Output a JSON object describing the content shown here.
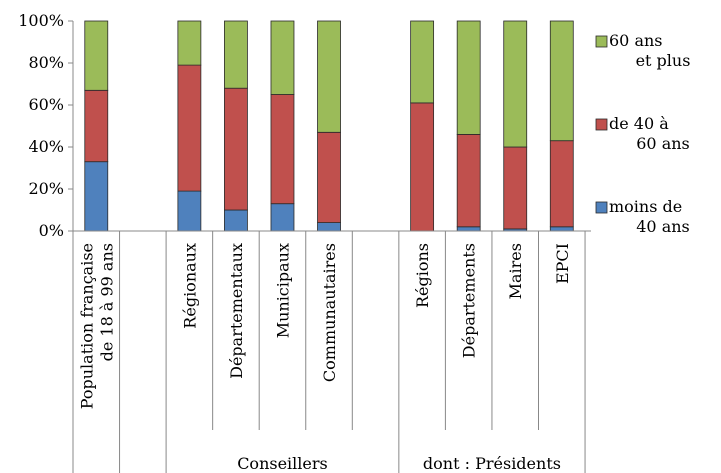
{
  "chart_data": {
    "type": "bar",
    "stacked": true,
    "percent": true,
    "categories": [
      "Population française de 18 à 99 ans",
      "",
      "Régionaux",
      "Départementaux",
      "Municipaux",
      "Communautaires",
      "",
      "Régions",
      "Départements",
      "Maires",
      "EPCI"
    ],
    "category_lines": [
      [
        "Population française",
        "de 18 à 99 ans"
      ],
      [],
      [
        "Régionaux"
      ],
      [
        "Départementaux"
      ],
      [
        "Municipaux"
      ],
      [
        "Communautaires"
      ],
      [],
      [
        "Régions"
      ],
      [
        "Départements"
      ],
      [
        "Maires"
      ],
      [
        "EPCI"
      ]
    ],
    "groups": [
      {
        "label": "Conseillers",
        "from": 2,
        "to": 6
      },
      {
        "label": "dont : Présidents",
        "from": 7,
        "to": 10
      }
    ],
    "series": [
      {
        "name": "moins de 40 ans",
        "legend_lines": [
          "moins de",
          "40 ans"
        ],
        "color": "#4f81bd",
        "values": [
          33,
          null,
          19,
          10,
          13,
          4,
          null,
          0,
          2,
          1,
          2
        ]
      },
      {
        "name": "de 40 à 60 ans",
        "legend_lines": [
          "de 40 à",
          "60 ans"
        ],
        "color": "#c0504d",
        "values": [
          34,
          null,
          60,
          58,
          52,
          43,
          null,
          61,
          44,
          39,
          41
        ]
      },
      {
        "name": "60 ans et plus",
        "legend_lines": [
          "60 ans",
          "et plus"
        ],
        "color": "#9bbb59",
        "values": [
          33,
          null,
          21,
          32,
          35,
          53,
          null,
          39,
          54,
          60,
          57
        ]
      }
    ],
    "y_ticks": [
      "0%",
      "20%",
      "40%",
      "60%",
      "80%",
      "100%"
    ],
    "ylim": [
      0,
      100
    ],
    "grid": false,
    "legend_position": "right",
    "title": "",
    "xlabel": "",
    "ylabel": ""
  }
}
